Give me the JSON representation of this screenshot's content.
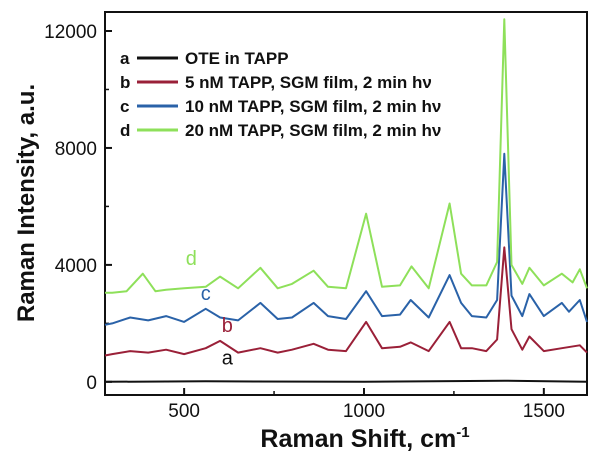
{
  "chart_data": {
    "type": "line",
    "title": "",
    "xlabel": "Raman Shift, cm",
    "xlabel_superscript": "-1",
    "ylabel": "Raman Intensity, a.u.",
    "xlim": [
      280,
      1620
    ],
    "ylim": [
      -450,
      12650
    ],
    "x_ticks": [
      500,
      1000,
      1500
    ],
    "x_tick_labels": [
      "500",
      "1000",
      "1500"
    ],
    "y_ticks": [
      0,
      4000,
      8000,
      12000
    ],
    "y_tick_labels": [
      "0",
      "4000",
      "8000",
      "12000"
    ],
    "legend_position": "top-left",
    "series": [
      {
        "letter": "a",
        "name": "OTE in TAPP",
        "color": "#111111",
        "x": [
          280,
          560,
          1000,
          1390,
          1620
        ],
        "y": [
          0,
          20,
          0,
          40,
          0
        ]
      },
      {
        "letter": "b",
        "name": "5 nM TAPP, SGM film,   2 min hν",
        "color": "#9a2038",
        "x": [
          280,
          300,
          350,
          400,
          450,
          500,
          560,
          600,
          650,
          712,
          760,
          800,
          860,
          900,
          950,
          1006,
          1050,
          1100,
          1130,
          1180,
          1238,
          1270,
          1300,
          1340,
          1370,
          1390,
          1410,
          1440,
          1460,
          1500,
          1550,
          1600,
          1620
        ],
        "y": [
          900,
          950,
          1050,
          1000,
          1100,
          950,
          1150,
          1400,
          1000,
          1150,
          1000,
          1100,
          1300,
          1100,
          1050,
          2050,
          1150,
          1200,
          1350,
          1050,
          2050,
          1150,
          1150,
          1050,
          1450,
          4600,
          1800,
          1100,
          1550,
          1050,
          1150,
          1250,
          1000
        ]
      },
      {
        "letter": "c",
        "name": "10 nM TAPP, SGM film, 2 min hν",
        "color": "#2a62a8",
        "x": [
          280,
          300,
          350,
          400,
          450,
          500,
          560,
          600,
          650,
          712,
          760,
          800,
          860,
          900,
          950,
          1006,
          1050,
          1100,
          1130,
          1180,
          1238,
          1270,
          1300,
          1340,
          1370,
          1390,
          1410,
          1440,
          1460,
          1500,
          1550,
          1570,
          1600,
          1620
        ],
        "y": [
          1950,
          2000,
          2200,
          2100,
          2250,
          2050,
          2500,
          2200,
          2100,
          2700,
          2150,
          2200,
          2700,
          2250,
          2150,
          3100,
          2250,
          2300,
          2800,
          2200,
          3650,
          2700,
          2250,
          2200,
          2800,
          7800,
          2950,
          2250,
          3000,
          2250,
          2700,
          2400,
          2800,
          2050
        ]
      },
      {
        "letter": "d",
        "name": "20 nM TAPP, SGM film, 2 min hν",
        "color": "#8ee05a",
        "x": [
          280,
          300,
          340,
          385,
          420,
          450,
          500,
          560,
          600,
          650,
          712,
          760,
          800,
          860,
          900,
          950,
          1006,
          1050,
          1100,
          1132,
          1180,
          1238,
          1270,
          1300,
          1340,
          1370,
          1390,
          1410,
          1440,
          1460,
          1500,
          1550,
          1580,
          1600,
          1620
        ],
        "y": [
          3050,
          3050,
          3100,
          3700,
          3100,
          3150,
          3200,
          3250,
          3600,
          3200,
          3900,
          3200,
          3350,
          3800,
          3250,
          3200,
          5750,
          3250,
          3300,
          3950,
          3200,
          6100,
          3700,
          3300,
          3300,
          4100,
          12400,
          4000,
          3350,
          3900,
          3300,
          3700,
          3400,
          3850,
          3200
        ]
      }
    ]
  }
}
